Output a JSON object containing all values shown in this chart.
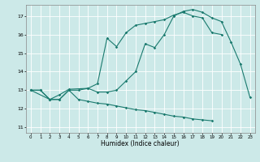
{
  "xlabel": "Humidex (Indice chaleur)",
  "xlim": [
    -0.5,
    23.5
  ],
  "ylim": [
    10.7,
    17.6
  ],
  "yticks": [
    11,
    12,
    13,
    14,
    15,
    16,
    17
  ],
  "xticks": [
    0,
    1,
    2,
    3,
    4,
    5,
    6,
    7,
    8,
    9,
    10,
    11,
    12,
    13,
    14,
    15,
    16,
    17,
    18,
    19,
    20,
    21,
    22,
    23
  ],
  "bg_color": "#cce9e8",
  "grid_color": "#ffffff",
  "line_color": "#1a7a6e",
  "line1_x": [
    0,
    1,
    2,
    3,
    4,
    5,
    6,
    7,
    8,
    9,
    10,
    11,
    12,
    13,
    14,
    15,
    16,
    17,
    18,
    19,
    20,
    21,
    22,
    23
  ],
  "line1_y": [
    13.0,
    13.0,
    12.5,
    12.5,
    13.0,
    13.0,
    13.1,
    12.9,
    12.9,
    13.0,
    13.5,
    14.0,
    15.5,
    15.3,
    16.0,
    17.0,
    17.25,
    17.35,
    17.2,
    16.9,
    16.7,
    15.6,
    14.4,
    12.6
  ],
  "line2_x": [
    0,
    2,
    3,
    4,
    6,
    7,
    8,
    9,
    10,
    11,
    12,
    13,
    14,
    15,
    16,
    17,
    18,
    19,
    20
  ],
  "line2_y": [
    13.0,
    12.5,
    12.75,
    13.05,
    13.1,
    13.35,
    15.8,
    15.35,
    16.1,
    16.5,
    16.6,
    16.7,
    16.8,
    17.05,
    17.2,
    17.0,
    16.9,
    16.1,
    16.0
  ],
  "line3_x": [
    0,
    1,
    2,
    3,
    4,
    5,
    6,
    7,
    8,
    9,
    10,
    11,
    12,
    13,
    14,
    15,
    16,
    17,
    18,
    19
  ],
  "line3_y": [
    13.0,
    13.0,
    12.5,
    12.5,
    13.0,
    12.5,
    12.4,
    12.3,
    12.25,
    12.15,
    12.05,
    11.95,
    11.9,
    11.8,
    11.7,
    11.6,
    11.55,
    11.45,
    11.4,
    11.35
  ]
}
